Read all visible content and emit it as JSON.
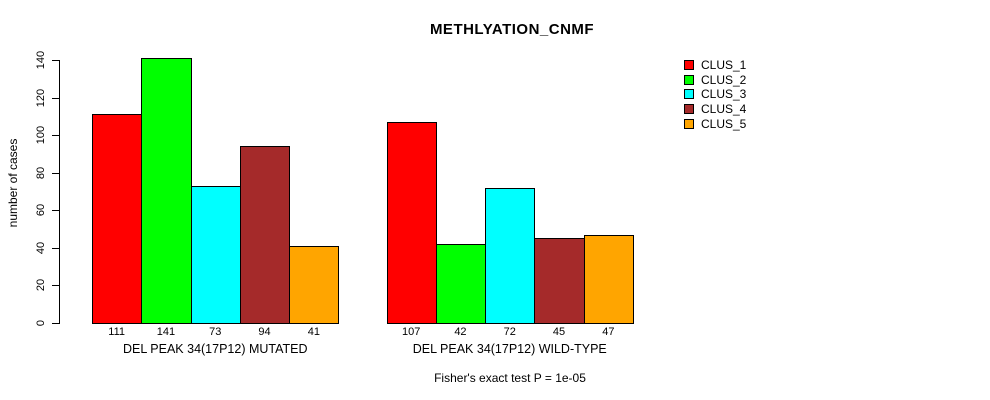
{
  "chart_data": {
    "type": "bar",
    "title": "METHLYATION_CNMF",
    "ylabel": "number of cases",
    "xlabel": "",
    "ylim": [
      0,
      140
    ],
    "yticks": [
      0,
      20,
      40,
      60,
      80,
      100,
      120,
      140
    ],
    "grid": false,
    "legend_position": "right",
    "categories": [
      "DEL PEAK 34(17P12) MUTATED",
      "DEL PEAK 34(17P12) WILD-TYPE"
    ],
    "series": [
      {
        "name": "CLUS_1",
        "color": "#FF0000",
        "values": [
          111,
          107
        ]
      },
      {
        "name": "CLUS_2",
        "color": "#00FF00",
        "values": [
          141,
          42
        ]
      },
      {
        "name": "CLUS_3",
        "color": "#00FFFF",
        "values": [
          73,
          72
        ]
      },
      {
        "name": "CLUS_4",
        "color": "#A52A2A",
        "values": [
          94,
          45
        ]
      },
      {
        "name": "CLUS_5",
        "color": "#FFA500",
        "values": [
          41,
          47
        ]
      }
    ],
    "bar_value_labels": {
      "DEL PEAK 34(17P12) MUTATED": [
        111,
        141,
        73,
        94,
        41
      ],
      "DEL PEAK 34(17P12) WILD-TYPE": [
        107,
        42,
        72,
        45,
        47
      ]
    },
    "annotation": "Fisher's exact test P = 1e-05"
  },
  "legend": {
    "items": [
      {
        "label": "CLUS_1",
        "color": "#FF0000"
      },
      {
        "label": "CLUS_2",
        "color": "#00FF00"
      },
      {
        "label": "CLUS_3",
        "color": "#00FFFF"
      },
      {
        "label": "CLUS_4",
        "color": "#A52A2A"
      },
      {
        "label": "CLUS_5",
        "color": "#FFA500"
      }
    ]
  }
}
